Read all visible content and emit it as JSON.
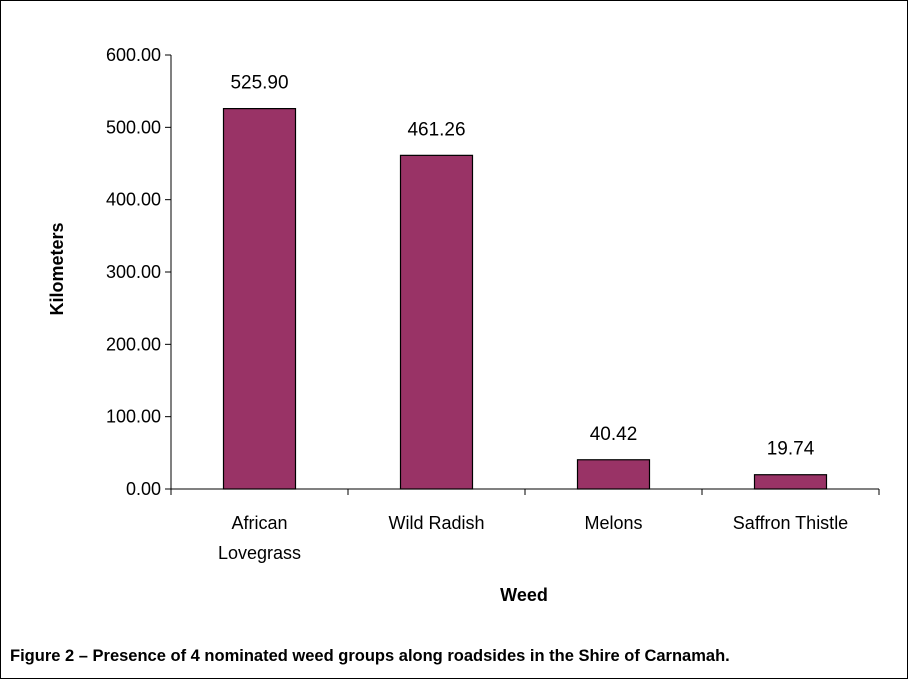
{
  "caption": "Figure 2 – Presence of 4 nominated weed groups along roadsides in the Shire of Carnamah.",
  "chart_data": {
    "type": "bar",
    "categories": [
      [
        "African",
        "Lovegrass"
      ],
      [
        "Wild Radish"
      ],
      [
        "Melons"
      ],
      [
        "Saffron Thistle"
      ]
    ],
    "values": [
      525.9,
      461.26,
      40.42,
      19.74
    ],
    "value_labels": [
      "525.90",
      "461.26",
      "40.42",
      "19.74"
    ],
    "xlabel": "Weed",
    "ylabel": "Kilometers",
    "ylim": [
      0,
      600
    ],
    "yticks": [
      "0.00",
      "100.00",
      "200.00",
      "300.00",
      "400.00",
      "500.00",
      "600.00"
    ],
    "ytick_values": [
      0,
      100,
      200,
      300,
      400,
      500,
      600
    ],
    "bar_color": "#993366",
    "grid": false,
    "legend": "none"
  }
}
